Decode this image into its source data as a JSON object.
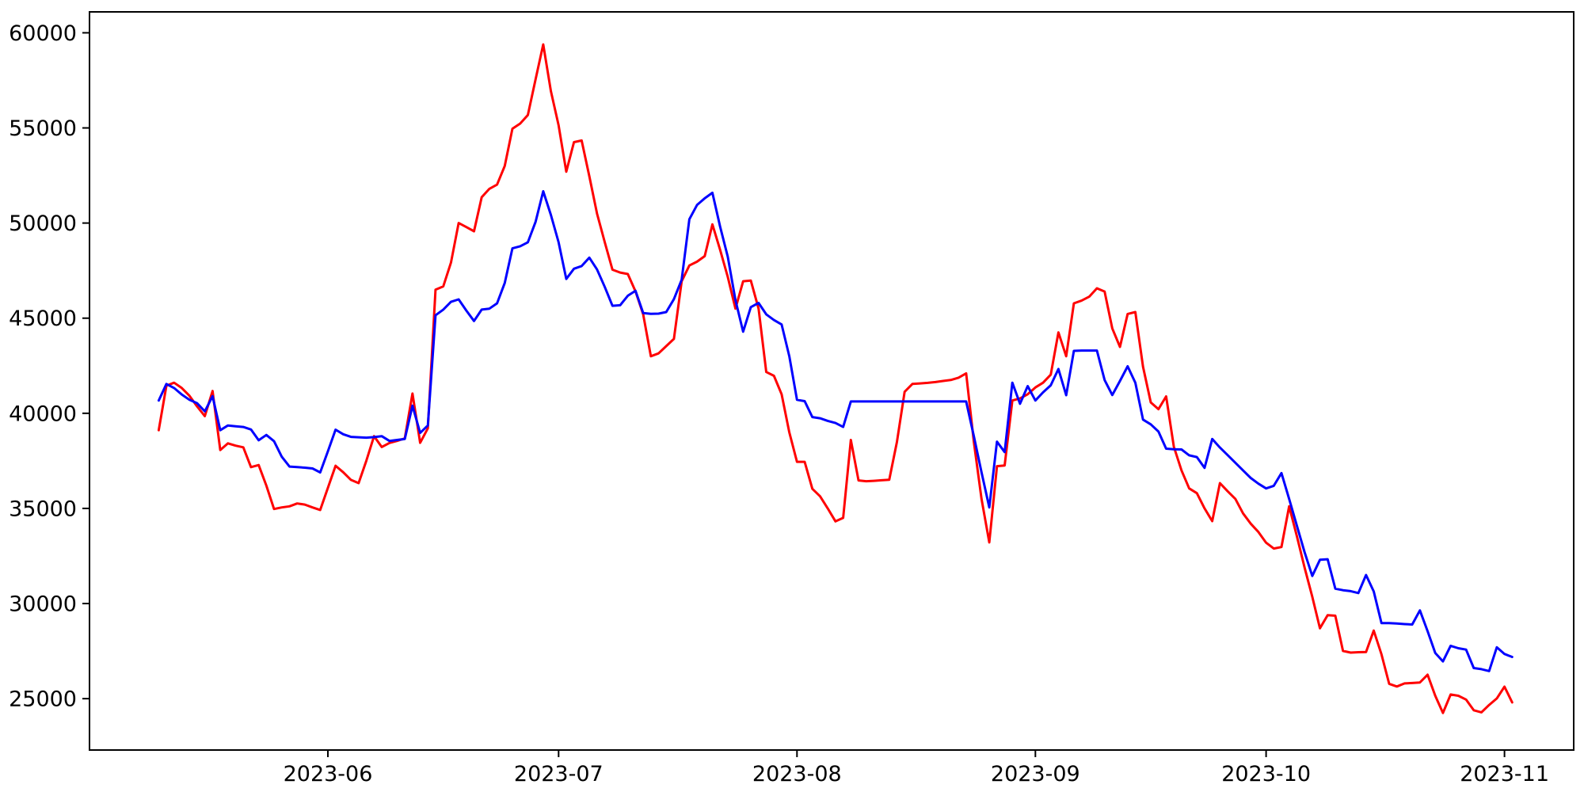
{
  "chart_data": {
    "type": "line",
    "title": "",
    "xlabel": "",
    "ylabel": "",
    "legend": "none",
    "grid": false,
    "background_color": "#ffffff",
    "axis_color": "#000000",
    "xlim": [
      "2023-05-01",
      "2023-11-10"
    ],
    "ylim": [
      22300,
      61100
    ],
    "yticks": [
      25000,
      30000,
      35000,
      40000,
      45000,
      50000,
      55000,
      60000
    ],
    "xticks": [
      {
        "date": "2023-06-01",
        "label": "2023-06"
      },
      {
        "date": "2023-07-01",
        "label": "2023-07"
      },
      {
        "date": "2023-08-01",
        "label": "2023-08"
      },
      {
        "date": "2023-09-01",
        "label": "2023-09"
      },
      {
        "date": "2023-10-01",
        "label": "2023-10"
      },
      {
        "date": "2023-11-01",
        "label": "2023-11"
      }
    ],
    "x_start_date": "2023-05-10",
    "x": [
      "2023-05-10",
      "2023-05-11",
      "2023-05-12",
      "2023-05-13",
      "2023-05-14",
      "2023-05-15",
      "2023-05-16",
      "2023-05-17",
      "2023-05-18",
      "2023-05-19",
      "2023-05-20",
      "2023-05-21",
      "2023-05-22",
      "2023-05-23",
      "2023-05-24",
      "2023-05-25",
      "2023-05-26",
      "2023-05-27",
      "2023-05-28",
      "2023-05-29",
      "2023-05-30",
      "2023-05-31",
      "2023-06-01",
      "2023-06-02",
      "2023-06-03",
      "2023-06-04",
      "2023-06-05",
      "2023-06-06",
      "2023-06-07",
      "2023-06-08",
      "2023-06-09",
      "2023-06-10",
      "2023-06-11",
      "2023-06-12",
      "2023-06-13",
      "2023-06-14",
      "2023-06-15",
      "2023-06-16",
      "2023-06-17",
      "2023-06-18",
      "2023-06-19",
      "2023-06-20",
      "2023-06-21",
      "2023-06-22",
      "2023-06-23",
      "2023-06-24",
      "2023-06-25",
      "2023-06-26",
      "2023-06-27",
      "2023-06-28",
      "2023-06-29",
      "2023-06-30",
      "2023-07-01",
      "2023-07-02",
      "2023-07-03",
      "2023-07-04",
      "2023-07-05",
      "2023-07-06",
      "2023-07-07",
      "2023-07-08",
      "2023-07-09",
      "2023-07-10",
      "2023-07-11",
      "2023-07-12",
      "2023-07-13",
      "2023-07-14",
      "2023-07-15",
      "2023-07-16",
      "2023-07-17",
      "2023-07-18",
      "2023-07-19",
      "2023-07-20",
      "2023-07-21",
      "2023-07-22",
      "2023-07-23",
      "2023-07-24",
      "2023-07-25",
      "2023-07-26",
      "2023-07-27",
      "2023-07-28",
      "2023-07-29",
      "2023-07-30",
      "2023-07-31",
      "2023-08-01",
      "2023-08-02",
      "2023-08-03",
      "2023-08-04",
      "2023-08-05",
      "2023-08-06",
      "2023-08-07",
      "2023-08-08",
      "2023-08-09",
      "2023-08-10",
      "2023-08-11",
      "2023-08-12",
      "2023-08-13",
      "2023-08-14",
      "2023-08-15",
      "2023-08-16",
      "2023-08-17",
      "2023-08-18",
      "2023-08-19",
      "2023-08-20",
      "2023-08-21",
      "2023-08-22",
      "2023-08-23",
      "2023-08-24",
      "2023-08-25",
      "2023-08-26",
      "2023-08-27",
      "2023-08-28",
      "2023-08-29",
      "2023-08-30",
      "2023-08-31",
      "2023-09-01",
      "2023-09-02",
      "2023-09-03",
      "2023-09-04",
      "2023-09-05",
      "2023-09-06",
      "2023-09-07",
      "2023-09-08",
      "2023-09-09",
      "2023-09-10",
      "2023-09-11",
      "2023-09-12",
      "2023-09-13",
      "2023-09-14",
      "2023-09-15",
      "2023-09-16",
      "2023-09-17",
      "2023-09-18",
      "2023-09-19",
      "2023-09-20",
      "2023-09-21",
      "2023-09-22",
      "2023-09-23",
      "2023-09-24",
      "2023-09-25",
      "2023-09-26",
      "2023-09-27",
      "2023-09-28",
      "2023-09-29",
      "2023-09-30",
      "2023-10-01",
      "2023-10-02",
      "2023-10-03",
      "2023-10-04",
      "2023-10-05",
      "2023-10-06",
      "2023-10-07",
      "2023-10-08",
      "2023-10-09",
      "2023-10-10",
      "2023-10-11",
      "2023-10-12",
      "2023-10-13",
      "2023-10-14",
      "2023-10-15",
      "2023-10-16",
      "2023-10-17",
      "2023-10-18",
      "2023-10-19",
      "2023-10-20",
      "2023-10-21",
      "2023-10-22",
      "2023-10-23",
      "2023-10-24",
      "2023-10-25",
      "2023-10-26",
      "2023-10-27",
      "2023-10-28",
      "2023-10-29",
      "2023-10-30",
      "2023-10-31",
      "2023-11-01",
      "2023-11-02"
    ],
    "series": [
      {
        "name": "red",
        "color": "#ff0000",
        "line_width": 3,
        "values": [
          39110,
          41450,
          41610,
          41330,
          40920,
          40360,
          39850,
          41170,
          38070,
          38420,
          38300,
          38210,
          37170,
          37280,
          36200,
          34970,
          35050,
          35110,
          35260,
          35200,
          35050,
          34920,
          36080,
          37240,
          36900,
          36500,
          36330,
          37510,
          38800,
          38230,
          38440,
          38550,
          38680,
          41040,
          38450,
          39210,
          46500,
          46670,
          47920,
          50000,
          49790,
          49570,
          51360,
          51800,
          52020,
          53000,
          54960,
          55230,
          55680,
          57550,
          59390,
          56930,
          55140,
          52700,
          54250,
          54340,
          52460,
          50500,
          48990,
          47550,
          47400,
          47320,
          46410,
          45200,
          43000,
          43150,
          43530,
          43910,
          46940,
          47770,
          47970,
          48260,
          49930,
          48600,
          47170,
          45500,
          46940,
          46980,
          45500,
          42170,
          41970,
          41000,
          39000,
          37450,
          37450,
          36030,
          35640,
          35000,
          34320,
          34500,
          38600,
          36470,
          36430,
          36450,
          36480,
          36510,
          38500,
          41130,
          41540,
          41570,
          41600,
          41640,
          41700,
          41750,
          41870,
          42100,
          38500,
          35500,
          33210,
          37220,
          37260,
          40670,
          40780,
          41000,
          41360,
          41610,
          42030,
          44250,
          43000,
          45780,
          45920,
          46130,
          46570,
          46400,
          44460,
          43490,
          45220,
          45320,
          42450,
          40570,
          40220,
          40890,
          38250,
          37000,
          36050,
          35800,
          35000,
          34330,
          36330,
          35900,
          35500,
          34740,
          34200,
          33760,
          33200,
          32890,
          32970,
          35110,
          33550,
          31890,
          30360,
          28700,
          29390,
          29360,
          27510,
          27420,
          27440,
          27450,
          28580,
          27330,
          25780,
          25640,
          25800,
          25820,
          25850,
          26260,
          25150,
          24250,
          25220,
          25150,
          24950,
          24390,
          24280,
          24670,
          25010,
          25630,
          24800
        ]
      },
      {
        "name": "blue",
        "color": "#0000ff",
        "line_width": 3,
        "values": [
          40670,
          41540,
          41330,
          40990,
          40710,
          40530,
          40100,
          40900,
          39110,
          39360,
          39320,
          39280,
          39150,
          38580,
          38860,
          38530,
          37720,
          37200,
          37170,
          37140,
          37100,
          36890,
          38000,
          39140,
          38900,
          38760,
          38740,
          38720,
          38750,
          38800,
          38550,
          38600,
          38650,
          40400,
          38970,
          39360,
          45150,
          45450,
          45860,
          45990,
          45400,
          44850,
          45450,
          45500,
          45780,
          46850,
          48670,
          48780,
          48990,
          50060,
          51670,
          50420,
          48990,
          47060,
          47600,
          47740,
          48180,
          47560,
          46640,
          45650,
          45680,
          46180,
          46440,
          45270,
          45230,
          45240,
          45320,
          46000,
          47020,
          50200,
          50950,
          51300,
          51590,
          49820,
          48230,
          45950,
          44290,
          45580,
          45800,
          45200,
          44900,
          44670,
          43000,
          40710,
          40640,
          39800,
          39740,
          39600,
          39490,
          39280,
          40620,
          40620,
          40620,
          40620,
          40620,
          40620,
          40620,
          40620,
          40620,
          40620,
          40620,
          40620,
          40620,
          40620,
          40620,
          40620,
          38800,
          36900,
          35050,
          38510,
          37960,
          41610,
          40500,
          41430,
          40670,
          41100,
          41470,
          42330,
          40950,
          43280,
          43300,
          43300,
          43300,
          41750,
          40960,
          41700,
          42470,
          41610,
          39670,
          39420,
          39040,
          38140,
          38110,
          38100,
          37790,
          37700,
          37130,
          38650,
          38200,
          37800,
          37400,
          37000,
          36600,
          36300,
          36050,
          36190,
          36860,
          35500,
          34100,
          32700,
          31450,
          32300,
          32330,
          30780,
          30700,
          30650,
          30550,
          31500,
          30640,
          28970,
          28970,
          28950,
          28920,
          28900,
          29640,
          28550,
          27400,
          26960,
          27780,
          27650,
          27580,
          26610,
          26550,
          26450,
          27700,
          27350,
          27190
        ]
      }
    ]
  }
}
